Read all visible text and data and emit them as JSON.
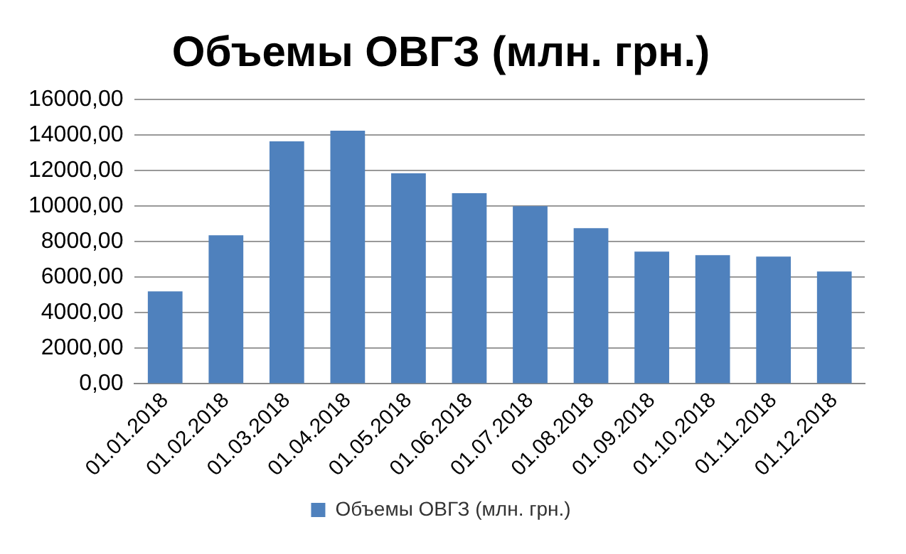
{
  "chart_data": {
    "type": "bar",
    "title": "Объемы ОВГЗ (млн. грн.)",
    "categories": [
      "01.01.2018",
      "01.02.2018",
      "01.03.2018",
      "01.04.2018",
      "01.05.2018",
      "01.06.2018",
      "01.07.2018",
      "01.08.2018",
      "01.09.2018",
      "01.10.2018",
      "01.11.2018",
      "01.12.2018"
    ],
    "series": [
      {
        "name": "Объемы ОВГЗ (млн. грн.)",
        "color": "#4f81bd",
        "values": [
          5200,
          8360,
          13640,
          14240,
          11840,
          10720,
          10000,
          8760,
          7440,
          7240,
          7160,
          6320
        ]
      }
    ],
    "ylim": [
      0,
      16000
    ],
    "yticks": [
      {
        "value": 0,
        "label": "0,00"
      },
      {
        "value": 2000,
        "label": "2000,00"
      },
      {
        "value": 4000,
        "label": "4000,00"
      },
      {
        "value": 6000,
        "label": "6000,00"
      },
      {
        "value": 8000,
        "label": "8000,00"
      },
      {
        "value": 10000,
        "label": "10000,00"
      },
      {
        "value": 12000,
        "label": "12000,00"
      },
      {
        "value": 14000,
        "label": "14000,00"
      },
      {
        "value": 16000,
        "label": "16000,00"
      }
    ],
    "grid": "y",
    "legend": "bottom"
  }
}
